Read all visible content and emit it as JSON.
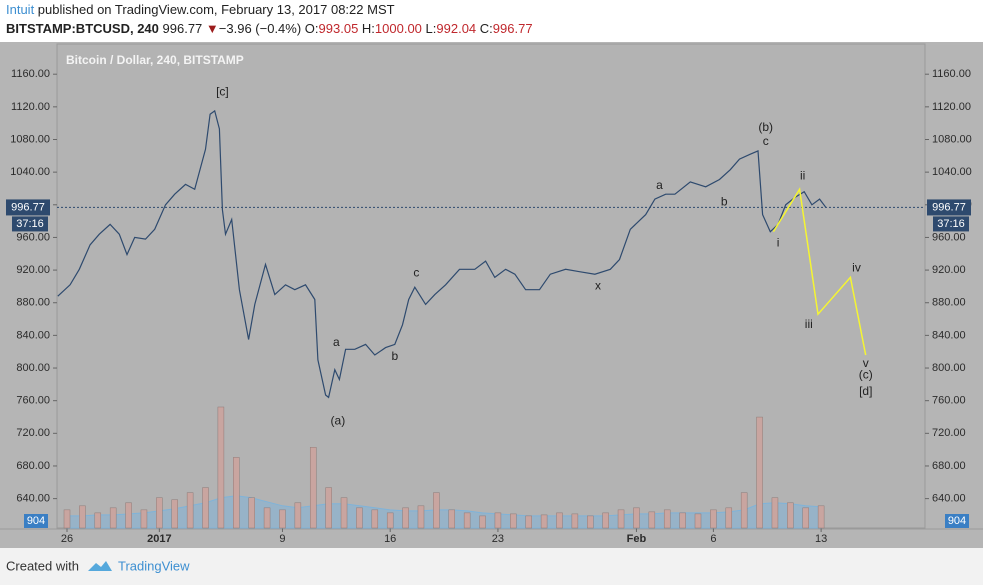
{
  "header": {
    "author": "Intuit",
    "published": " published on TradingView.com, February 13, 2017 08:22 MST",
    "symbol": "BITSTAMP:BTCUSD, 240",
    "price": "996.77",
    "arrow": "▼",
    "change": "−3.96 (−0.4%)",
    "o_label": "O:",
    "o": "993.05",
    "h_label": "H:",
    "h": "1000.00",
    "l_label": "L:",
    "l": "992.04",
    "c_label": "C:",
    "c": "996.77"
  },
  "footer": {
    "created": "Created with",
    "brand": "TradingView"
  },
  "chart_data": {
    "type": "line",
    "title": "Bitcoin / Dollar, 240, BITSTAMP",
    "xlim": [
      -0.65,
      55.75
    ],
    "xticks": [
      {
        "value": 0,
        "label": "26"
      },
      {
        "value": 6,
        "label": "2017"
      },
      {
        "value": 14,
        "label": "9"
      },
      {
        "value": 21,
        "label": "16"
      },
      {
        "value": 28,
        "label": "23"
      },
      {
        "value": 37,
        "label": "Feb"
      },
      {
        "value": 42,
        "label": "6"
      },
      {
        "value": 49,
        "label": "13"
      }
    ],
    "ylim": [
      604,
      1197
    ],
    "yticks": [
      {
        "value": 640,
        "label": "640.00"
      },
      {
        "value": 680,
        "label": "680.00"
      },
      {
        "value": 720,
        "label": "720.00"
      },
      {
        "value": 760,
        "label": "760.00"
      },
      {
        "value": 800,
        "label": "800.00"
      },
      {
        "value": 840,
        "label": "840.00"
      },
      {
        "value": 880,
        "label": "880.00"
      },
      {
        "value": 920,
        "label": "920.00"
      },
      {
        "value": 960,
        "label": "960.00"
      },
      {
        "value": 1000,
        "label": "1000.00"
      },
      {
        "value": 1040,
        "label": "1040.00"
      },
      {
        "value": 1080,
        "label": "1080.00"
      },
      {
        "value": 1120,
        "label": "1120.00"
      },
      {
        "value": 1160,
        "label": "1160.00"
      }
    ],
    "last_price": 996.77,
    "countdown": "37:16",
    "volume_label": "904",
    "series": [
      {
        "name": "BTCUSD",
        "color": "#2e4a6e",
        "x": [
          -0.6,
          0.2,
          0.8,
          1.5,
          2.1,
          2.8,
          3.4,
          3.9,
          4.4,
          5.1,
          5.7,
          6.4,
          7.0,
          7.7,
          8.3,
          9.0,
          9.3,
          9.6,
          9.9,
          10.1,
          10.3,
          10.7,
          11.2,
          11.8,
          12.2,
          12.9,
          13.5,
          14.2,
          14.8,
          15.5,
          16.1,
          16.3,
          16.8,
          17.0,
          17.4,
          17.7,
          18.1,
          18.7,
          19.4,
          20.0,
          20.7,
          21.3,
          21.8,
          22.2,
          22.6,
          23.3,
          23.9,
          24.6,
          25.5,
          26.5,
          27.2,
          27.8,
          28.5,
          29.1,
          29.8,
          30.7,
          31.4,
          32.4,
          33.3,
          34.3,
          35.3,
          35.9,
          36.6,
          37.6,
          38.2,
          38.9,
          39.5,
          40.5,
          41.5,
          42.4,
          43.1,
          43.7,
          44.4,
          44.9,
          45.2,
          45.7,
          46.2,
          46.7,
          47.3,
          47.9,
          48.4,
          48.9,
          49.3
        ],
        "values": [
          888,
          902,
          921,
          951,
          964,
          976,
          964,
          939,
          960,
          958,
          970,
          1000,
          1013,
          1025,
          1019,
          1068,
          1111,
          1115,
          1093,
          994,
          964,
          982,
          896,
          835,
          878,
          927,
          890,
          902,
          896,
          902,
          884,
          810,
          767,
          764,
          798,
          786,
          823,
          823,
          829,
          816,
          825,
          829,
          853,
          884,
          899,
          878,
          890,
          902,
          921,
          921,
          931,
          911,
          921,
          915,
          896,
          896,
          915,
          921,
          918,
          915,
          921,
          933,
          970,
          988,
          1007,
          1013,
          1013,
          1028,
          1022,
          1031,
          1043,
          1056,
          1062,
          1066,
          988,
          967,
          976,
          1000,
          1009,
          1016,
          1000,
          1007,
          997
        ]
      },
      {
        "name": "Projection",
        "color": "#f5f532",
        "x": [
          45.9,
          47.6,
          48.8,
          50.9,
          51.9
        ],
        "values": [
          967,
          1019,
          866,
          911,
          816
        ]
      }
    ],
    "volume": {
      "color": "#c9a5a0",
      "ma_color": "#7fb3d9",
      "vlim": [
        0,
        480
      ],
      "x": [
        0,
        1,
        2,
        3,
        4,
        5,
        6,
        7,
        8,
        9,
        10,
        11,
        12,
        13,
        14,
        15,
        16,
        17,
        18,
        19,
        20,
        21,
        22,
        23,
        24,
        25,
        26,
        27,
        28,
        29,
        30,
        31,
        32,
        33,
        34,
        35,
        36,
        37,
        38,
        39,
        40,
        41,
        42,
        43,
        44,
        45,
        46,
        47,
        48,
        49
      ],
      "values": [
        18,
        22,
        15,
        20,
        25,
        18,
        30,
        28,
        35,
        40,
        120,
        70,
        30,
        20,
        18,
        25,
        80,
        40,
        30,
        20,
        18,
        15,
        20,
        22,
        35,
        18,
        15,
        12,
        15,
        14,
        12,
        13,
        15,
        14,
        12,
        15,
        18,
        20,
        16,
        18,
        15,
        14,
        18,
        20,
        35,
        110,
        30,
        25,
        20,
        22
      ],
      "ma": [
        12,
        12,
        13,
        13,
        14,
        15,
        17,
        19,
        22,
        25,
        30,
        32,
        30,
        26,
        22,
        20,
        22,
        24,
        24,
        22,
        20,
        18,
        17,
        17,
        18,
        18,
        17,
        15,
        14,
        13,
        12,
        12,
        12,
        12,
        12,
        12,
        13,
        14,
        14,
        15,
        15,
        15,
        15,
        16,
        18,
        24,
        25,
        24,
        22,
        21
      ]
    },
    "annotations": [
      {
        "text": "[c]",
        "x": 10.1,
        "y": 1138
      },
      {
        "text": "(a)",
        "x": 17.6,
        "y": 735
      },
      {
        "text": "a",
        "x": 17.5,
        "y": 831
      },
      {
        "text": "b",
        "x": 21.3,
        "y": 814
      },
      {
        "text": "c",
        "x": 22.7,
        "y": 916
      },
      {
        "text": "x",
        "x": 34.5,
        "y": 900
      },
      {
        "text": "a",
        "x": 38.5,
        "y": 1023
      },
      {
        "text": "b",
        "x": 42.7,
        "y": 1003
      },
      {
        "text": "(b)",
        "x": 45.4,
        "y": 1094
      },
      {
        "text": "c",
        "x": 45.4,
        "y": 1077
      },
      {
        "text": "i",
        "x": 46.2,
        "y": 953
      },
      {
        "text": "ii",
        "x": 47.8,
        "y": 1035
      },
      {
        "text": "iii",
        "x": 48.2,
        "y": 853
      },
      {
        "text": "iv",
        "x": 51.3,
        "y": 922
      },
      {
        "text": "v",
        "x": 51.9,
        "y": 805
      },
      {
        "text": "(c)",
        "x": 51.9,
        "y": 791
      },
      {
        "text": "[d]",
        "x": 51.9,
        "y": 771
      }
    ]
  }
}
